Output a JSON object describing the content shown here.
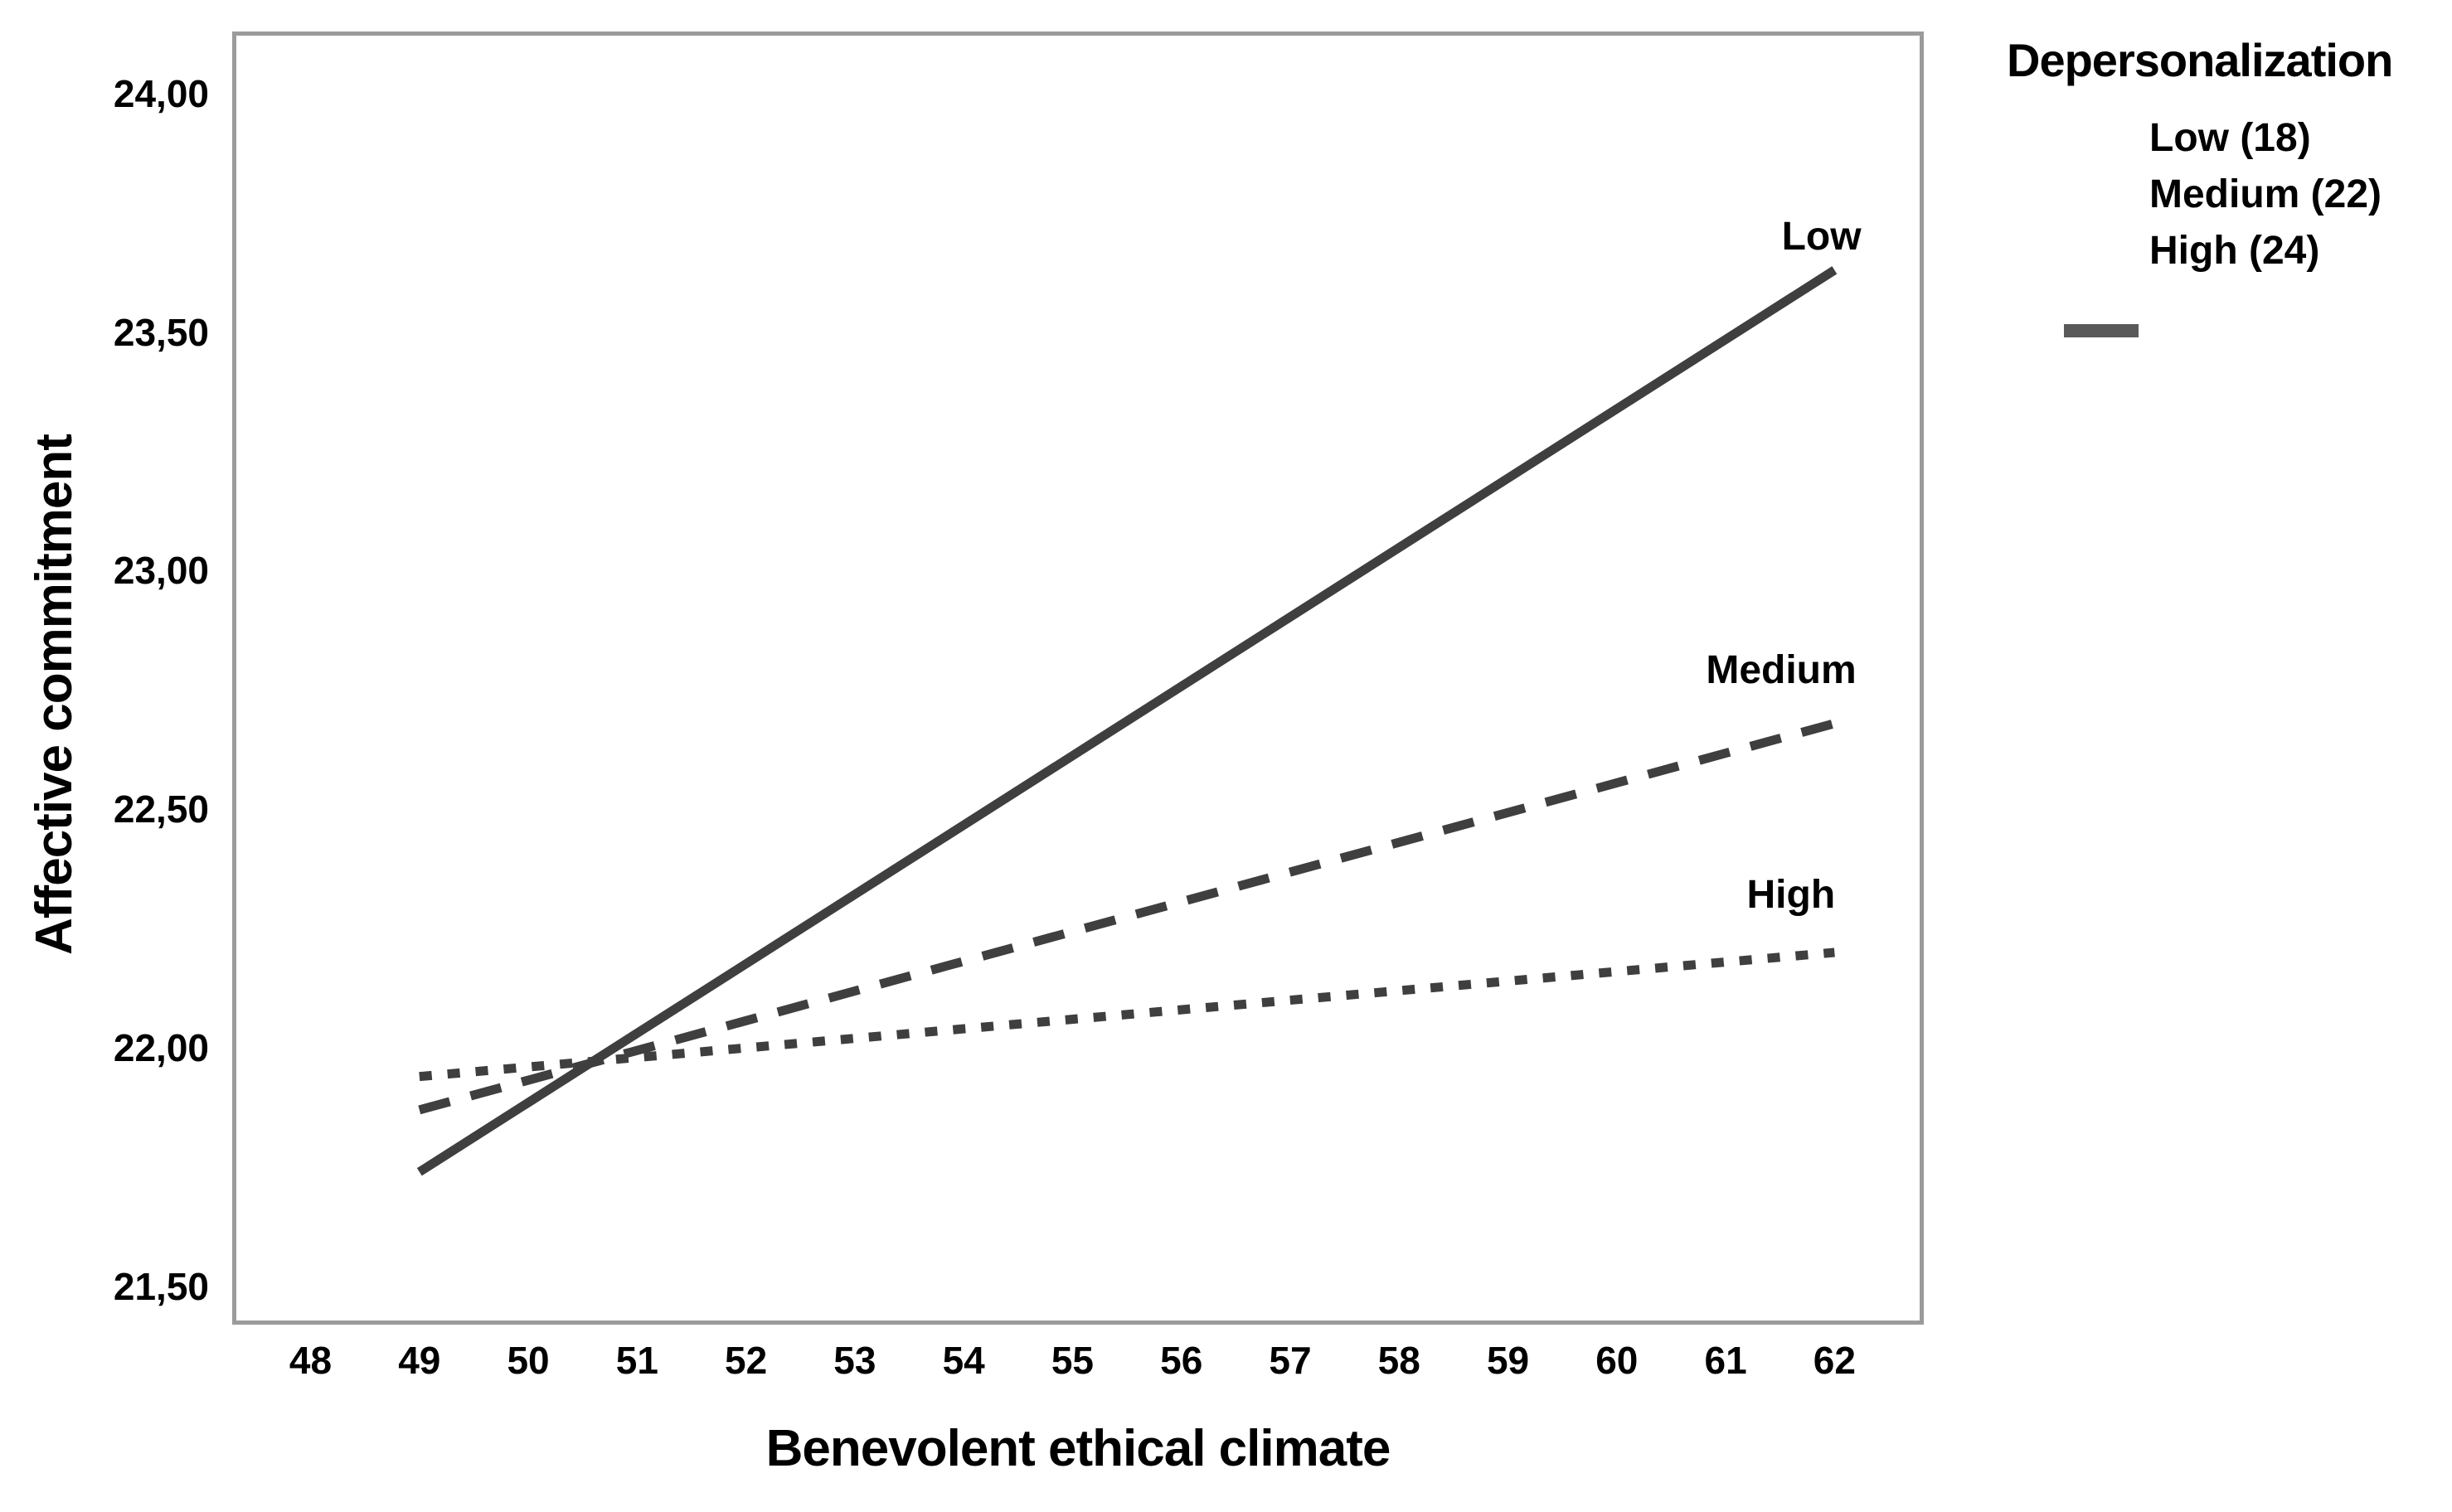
{
  "chart_data": {
    "type": "line",
    "title": "",
    "xlabel": "Benevolent ethical climate",
    "ylabel": "Affective commitment",
    "xlim": [
      47.28,
      62.82
    ],
    "ylim": [
      21.42,
      24.13
    ],
    "grid": false,
    "x_ticks": [
      {
        "v": 48,
        "label": "48"
      },
      {
        "v": 49,
        "label": "49"
      },
      {
        "v": 50,
        "label": "50"
      },
      {
        "v": 51,
        "label": "51"
      },
      {
        "v": 52,
        "label": "52"
      },
      {
        "v": 53,
        "label": "53"
      },
      {
        "v": 54,
        "label": "54"
      },
      {
        "v": 55,
        "label": "55"
      },
      {
        "v": 56,
        "label": "56"
      },
      {
        "v": 57,
        "label": "57"
      },
      {
        "v": 58,
        "label": "58"
      },
      {
        "v": 59,
        "label": "59"
      },
      {
        "v": 60,
        "label": "60"
      },
      {
        "v": 61,
        "label": "61"
      },
      {
        "v": 62,
        "label": "62"
      }
    ],
    "y_ticks": [
      {
        "v": 24.0,
        "label": "24,00"
      },
      {
        "v": 23.5,
        "label": "23,50"
      },
      {
        "v": 23.0,
        "label": "23,00"
      },
      {
        "v": 22.5,
        "label": "22,50"
      },
      {
        "v": 22.0,
        "label": "22,00"
      },
      {
        "v": 21.5,
        "label": "21,50"
      }
    ],
    "series": [
      {
        "name": "Low (18)",
        "label": "Low",
        "style": "solid",
        "points": [
          [
            49,
            21.74
          ],
          [
            62,
            23.63
          ]
        ],
        "label_at": [
          61.88,
          23.7
        ]
      },
      {
        "name": "Medium (22)",
        "label": "Medium",
        "style": "dashed",
        "points": [
          [
            49,
            21.87
          ],
          [
            62,
            22.68
          ]
        ],
        "label_at": [
          61.51,
          22.79
        ]
      },
      {
        "name": "High (24)",
        "label": "High",
        "style": "dotted",
        "points": [
          [
            49,
            21.94
          ],
          [
            62,
            22.2
          ]
        ],
        "label_at": [
          61.6,
          22.32
        ]
      }
    ],
    "legend": {
      "title": "Depersonalization",
      "entries": [
        "Low (18)",
        "Medium (22)",
        "High (24)"
      ],
      "position": "top-right-outside"
    }
  },
  "colors": {
    "line": "#3f3f3f",
    "frame": "#9b9b9b",
    "legend_swatch": "#595959",
    "text": "#000000",
    "background": "#ffffff"
  }
}
